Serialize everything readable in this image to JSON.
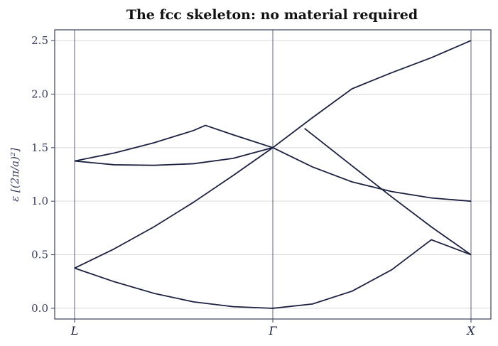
{
  "chart_data": {
    "type": "line",
    "title": "The fcc skeleton: no material required",
    "ylabel": "ε [(2π/a)²]",
    "xlabel": "",
    "ylim": [
      -0.1,
      2.6
    ],
    "xlim": [
      -0.1,
      1.0
    ],
    "yticks": [
      0.0,
      0.5,
      1.0,
      1.5,
      2.0,
      2.5
    ],
    "ytick_labels": [
      "0.0",
      "0.5",
      "1.0",
      "1.5",
      "2.0",
      "2.5"
    ],
    "xticks": [
      {
        "pos": 0.0,
        "label": "L"
      },
      {
        "pos": 0.5,
        "label": "Γ"
      },
      {
        "pos": 1.0,
        "label": "X"
      }
    ],
    "grid": "horizontal",
    "vlines_at": [
      0.0,
      0.5,
      1.0
    ],
    "line_color": "#1b2040",
    "series": [
      {
        "x": [
          0.0,
          0.1,
          0.2,
          0.3,
          0.4,
          0.5,
          0.6,
          0.7,
          0.8,
          0.9,
          1.0
        ],
        "y": [
          0.375,
          0.248,
          0.14,
          0.06,
          0.015,
          0.0,
          0.04,
          0.16,
          0.36,
          0.64,
          0.5
        ]
      },
      {
        "x": [
          0.0,
          0.1,
          0.2,
          0.3,
          0.4,
          0.5
        ],
        "y": [
          0.375,
          0.555,
          0.76,
          0.99,
          1.24,
          1.5
        ]
      },
      {
        "x": [
          0.0,
          0.1,
          0.2,
          0.3,
          0.4,
          0.5
        ],
        "y": [
          1.375,
          1.34,
          1.335,
          1.35,
          1.4,
          1.5
        ]
      },
      {
        "x": [
          0.0,
          0.1,
          0.2,
          0.3,
          0.33,
          0.4,
          0.5
        ],
        "y": [
          1.375,
          1.45,
          1.545,
          1.66,
          1.708,
          1.62,
          1.5
        ]
      },
      {
        "x": [
          0.5,
          0.6,
          0.7,
          0.75,
          0.8,
          0.9,
          1.0
        ],
        "y": [
          1.5,
          1.78,
          2.05,
          2.125,
          2.2,
          2.34,
          2.5
        ]
      },
      {
        "x": [
          0.5,
          0.6,
          0.7,
          0.8,
          0.9,
          1.0
        ],
        "y": [
          1.5,
          1.32,
          1.18,
          1.09,
          1.03,
          1.0
        ]
      },
      {
        "x": [
          0.58,
          0.7,
          0.8,
          0.9,
          1.0
        ],
        "y": [
          1.68,
          1.33,
          1.04,
          0.76,
          0.5
        ]
      }
    ]
  }
}
